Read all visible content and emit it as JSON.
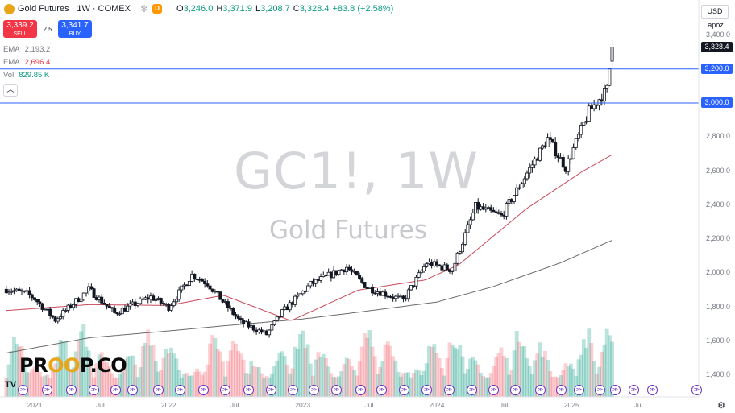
{
  "header": {
    "title": "Gold Futures · 1W · COMEX",
    "market_badge": "D",
    "ohlc": [
      {
        "label": "O",
        "value": "3,246.0"
      },
      {
        "label": "H",
        "value": "3,371.9"
      },
      {
        "label": "L",
        "value": "3,208.7"
      },
      {
        "label": "C",
        "value": "3,328.4"
      }
    ],
    "change": "+83.8 (+2.58%)"
  },
  "trade": {
    "sell_price": "3,339.2",
    "sell_label": "SELL",
    "spread": "2.5",
    "buy_price": "3,341.7",
    "buy_label": "BUY"
  },
  "indicators": [
    {
      "name": "EMA",
      "value": "2,193.2"
    },
    {
      "name": "EMA",
      "value": "2,696.4"
    },
    {
      "name": "Vol",
      "value": "829.85 K"
    }
  ],
  "watermark": {
    "symbol": "GC1!, 1W",
    "name": "Gold Futures"
  },
  "right_scale": {
    "currency": "USD",
    "mode": "apoz",
    "last_price": "3,328.4",
    "levels": [
      "3,200.0",
      "3,000.0"
    ],
    "ticks": [
      "3,400.0",
      "2,800.0",
      "2,600.0",
      "2,400.0",
      "2,200.0",
      "2,000.0",
      "1,800.0",
      "1,600.0",
      "1,400.0"
    ]
  },
  "x_axis": {
    "labels": [
      "2021",
      "Jul",
      "2022",
      "Jul",
      "2023",
      "Jul",
      "2024",
      "Jul",
      "2025",
      "Jul"
    ]
  },
  "brand": {
    "text_a": "PR",
    "text_b": "OO",
    "text_c": "P.CO"
  },
  "colors": {
    "up": "#089981",
    "down": "#f23645",
    "level_line": "#2962ff",
    "ema_fast": "#c9485b",
    "ema_slow": "#6b6b6b",
    "candle": "#131722"
  },
  "chart_data": {
    "type": "candlestick",
    "title": "GC1!, 1W",
    "subtitle": "Gold Futures",
    "xlabel": "",
    "ylabel": "",
    "ylim": [
      1300,
      3450
    ],
    "horizontal_levels": [
      3200,
      3000
    ],
    "anchors": [
      {
        "date": "2020-10-19",
        "close": 1905
      },
      {
        "date": "2020-12-14",
        "close": 1880
      },
      {
        "date": "2021-01-04",
        "close": 1850
      },
      {
        "date": "2021-03-01",
        "close": 1725
      },
      {
        "date": "2021-05-31",
        "close": 1905
      },
      {
        "date": "2021-08-09",
        "close": 1765
      },
      {
        "date": "2021-11-15",
        "close": 1860
      },
      {
        "date": "2022-01-03",
        "close": 1800
      },
      {
        "date": "2022-03-07",
        "close": 1990
      },
      {
        "date": "2022-04-18",
        "close": 1940
      },
      {
        "date": "2022-07-18",
        "close": 1710
      },
      {
        "date": "2022-09-26",
        "close": 1640
      },
      {
        "date": "2022-11-07",
        "close": 1770
      },
      {
        "date": "2023-01-23",
        "close": 1935
      },
      {
        "date": "2023-05-01",
        "close": 2035
      },
      {
        "date": "2023-06-26",
        "close": 1915
      },
      {
        "date": "2023-10-02",
        "close": 1840
      },
      {
        "date": "2023-12-04",
        "close": 2060
      },
      {
        "date": "2024-02-12",
        "close": 2020
      },
      {
        "date": "2024-04-15",
        "close": 2390
      },
      {
        "date": "2024-06-24",
        "close": 2335
      },
      {
        "date": "2024-10-28",
        "close": 2790
      },
      {
        "date": "2024-12-16",
        "close": 2620
      },
      {
        "date": "2025-02-17",
        "close": 2950
      },
      {
        "date": "2025-04-07",
        "close": 3080
      },
      {
        "date": "2025-04-21",
        "close": 3328
      }
    ],
    "ema_fast_anchors": [
      {
        "date": "2020-10-19",
        "value": 1780
      },
      {
        "date": "2021-06-01",
        "value": 1815
      },
      {
        "date": "2022-01-03",
        "value": 1810
      },
      {
        "date": "2022-06-01",
        "value": 1870
      },
      {
        "date": "2022-12-01",
        "value": 1720
      },
      {
        "date": "2023-06-01",
        "value": 1900
      },
      {
        "date": "2023-12-01",
        "value": 1960
      },
      {
        "date": "2024-03-01",
        "value": 2050
      },
      {
        "date": "2024-09-01",
        "value": 2380
      },
      {
        "date": "2025-02-01",
        "value": 2600
      },
      {
        "date": "2025-04-21",
        "value": 2696.4
      }
    ],
    "ema_slow_anchors": [
      {
        "date": "2020-10-19",
        "value": 1530
      },
      {
        "date": "2021-06-01",
        "value": 1620
      },
      {
        "date": "2022-01-03",
        "value": 1660
      },
      {
        "date": "2022-06-01",
        "value": 1690
      },
      {
        "date": "2023-01-01",
        "value": 1730
      },
      {
        "date": "2023-06-01",
        "value": 1770
      },
      {
        "date": "2024-01-01",
        "value": 1830
      },
      {
        "date": "2024-06-01",
        "value": 1920
      },
      {
        "date": "2024-12-01",
        "value": 2060
      },
      {
        "date": "2025-04-21",
        "value": 2193.2
      }
    ],
    "volume_note": "relative weekly volume, last bar 829.85 K"
  }
}
